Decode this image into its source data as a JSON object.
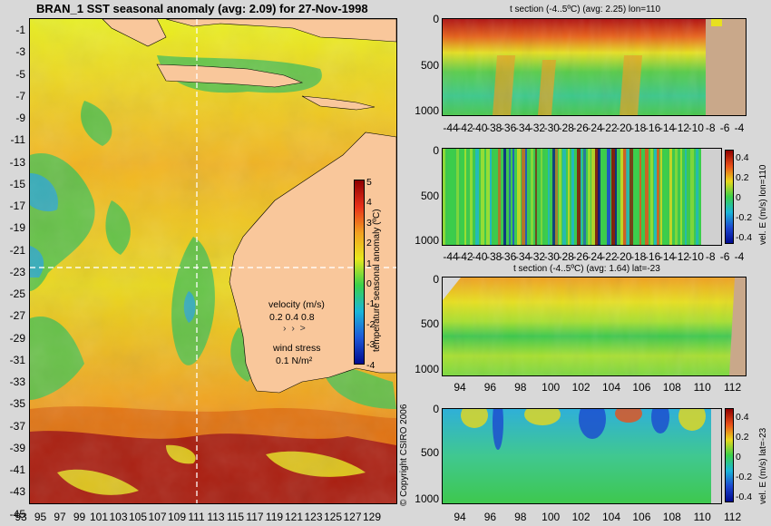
{
  "colors": {
    "background": "#d8d8d8",
    "land": "#f9c79b",
    "land_section": "#c9a88a",
    "anom_cold": "#000a8f",
    "anom_warm": "#8f0000"
  },
  "map": {
    "title": "BRAN_1 SST seasonal anomaly (avg: 2.09) for 27-Nov-1998",
    "copyright": "© Copyright CSIRO 2006",
    "lat_ticks": [
      "-1",
      "-3",
      "-5",
      "-7",
      "-9",
      "-11",
      "-13",
      "-15",
      "-17",
      "-19",
      "-21",
      "-23",
      "-25",
      "-27",
      "-29",
      "-31",
      "-33",
      "-35",
      "-37",
      "-39",
      "-41",
      "-43",
      "-45"
    ],
    "lon_ticks": [
      "93",
      "95",
      "97",
      "99",
      "101",
      "103",
      "105",
      "107",
      "109",
      "111",
      "113",
      "115",
      "117",
      "119",
      "121",
      "123",
      "125",
      "127",
      "129"
    ],
    "colorbar": {
      "label": "temperature seasonal anomaly (ºC)",
      "ticks": [
        "5",
        "4",
        "3",
        "2",
        "1",
        "0",
        "-1",
        "-2",
        "-3",
        "-4"
      ]
    },
    "velocity_legend": {
      "title": "velocity (m/s)",
      "values": "0.2 0.4 0.8"
    },
    "wind_legend": {
      "title": "wind stress",
      "value": "0.1 N/m²"
    }
  },
  "chart_data": [
    {
      "type": "heatmap",
      "title": "BRAN_1 SST seasonal anomaly (avg: 2.09) for 27-Nov-1998",
      "x_ticks": [
        93,
        95,
        97,
        99,
        101,
        103,
        105,
        107,
        109,
        111,
        113,
        115,
        117,
        119,
        121,
        123,
        125,
        127,
        129
      ],
      "y_ticks": [
        -1,
        -3,
        -5,
        -7,
        -9,
        -11,
        -13,
        -15,
        -17,
        -19,
        -21,
        -23,
        -25,
        -27,
        -29,
        -31,
        -33,
        -35,
        -37,
        -39,
        -41,
        -43,
        -45
      ],
      "xlim": [
        93,
        130
      ],
      "ylim": [
        -45,
        0
      ],
      "colorbar": {
        "label": "temperature seasonal anomaly (ºC)",
        "range": [
          -4,
          5
        ]
      },
      "section_lines": {
        "lon": 110,
        "lat": -23
      }
    },
    {
      "type": "heatmap",
      "title": "t section (-4..5ºC) (avg: 2.25) lon=110",
      "x_ticks": [
        -44,
        -42,
        -40,
        -38,
        -36,
        -34,
        -32,
        -30,
        -28,
        -26,
        -24,
        -22,
        -20,
        -18,
        -16,
        -14,
        -12,
        -10,
        -8,
        -6,
        -4
      ],
      "y_ticks": [
        0,
        500,
        1000
      ],
      "xlim": [
        -45,
        -2
      ],
      "ylim": [
        1050,
        0
      ]
    },
    {
      "type": "heatmap",
      "title": "",
      "x_ticks": [
        -44,
        -42,
        -40,
        -38,
        -36,
        -34,
        -32,
        -30,
        -28,
        -26,
        -24,
        -22,
        -20,
        -18,
        -16,
        -14,
        -12,
        -10,
        -8,
        -6,
        -4
      ],
      "y_ticks": [
        0,
        500,
        1000
      ],
      "xlim": [
        -45,
        -2
      ],
      "ylim": [
        1050,
        0
      ],
      "colorbar": {
        "label": "vel. E (m/s) lon=110",
        "ticks": [
          "0.4",
          "0.2",
          "0",
          "-0.2",
          "-0.4"
        ],
        "range": [
          -0.5,
          0.5
        ]
      }
    },
    {
      "type": "heatmap",
      "title": "t section (-4..5ºC) (avg: 1.64) lat=-23",
      "x_ticks": [
        94,
        96,
        98,
        100,
        102,
        104,
        106,
        108,
        110,
        112
      ],
      "y_ticks": [
        0,
        500,
        1000
      ],
      "xlim": [
        93,
        114
      ],
      "ylim": [
        1050,
        0
      ]
    },
    {
      "type": "heatmap",
      "title": "",
      "x_ticks": [
        94,
        96,
        98,
        100,
        102,
        104,
        106,
        108,
        110,
        112
      ],
      "y_ticks": [
        0,
        500,
        1000
      ],
      "xlim": [
        93,
        114
      ],
      "ylim": [
        1050,
        0
      ],
      "colorbar": {
        "label": "vel. E (m/s) lat=-23",
        "ticks": [
          "0.4",
          "0.2",
          "0",
          "-0.2",
          "-0.4"
        ],
        "range": [
          -0.5,
          0.5
        ]
      }
    }
  ],
  "sections": {
    "p1_title": "t section (-4..5ºC) (avg: 2.25) lon=110",
    "p3_title": "t section (-4..5ºC) (avg: 1.64) lat=-23",
    "depth_ticks": [
      "0",
      "500",
      "1000"
    ],
    "lat_ticks": [
      "-44",
      "-42",
      "-40",
      "-38",
      "-36",
      "-34",
      "-32",
      "-30",
      "-28",
      "-26",
      "-24",
      "-22",
      "-20",
      "-18",
      "-16",
      "-14",
      "-12",
      "-10",
      "-8",
      "-6",
      "-4"
    ],
    "lon_ticks": [
      "94",
      "96",
      "98",
      "100",
      "102",
      "104",
      "106",
      "108",
      "110",
      "112"
    ],
    "vel_label_lon": "vel. E (m/s) lon=110",
    "vel_label_lat": "vel. E (m/s) lat=-23",
    "vel_ticks": [
      "0.4",
      "0.2",
      "0",
      "-0.2",
      "-0.4"
    ]
  }
}
